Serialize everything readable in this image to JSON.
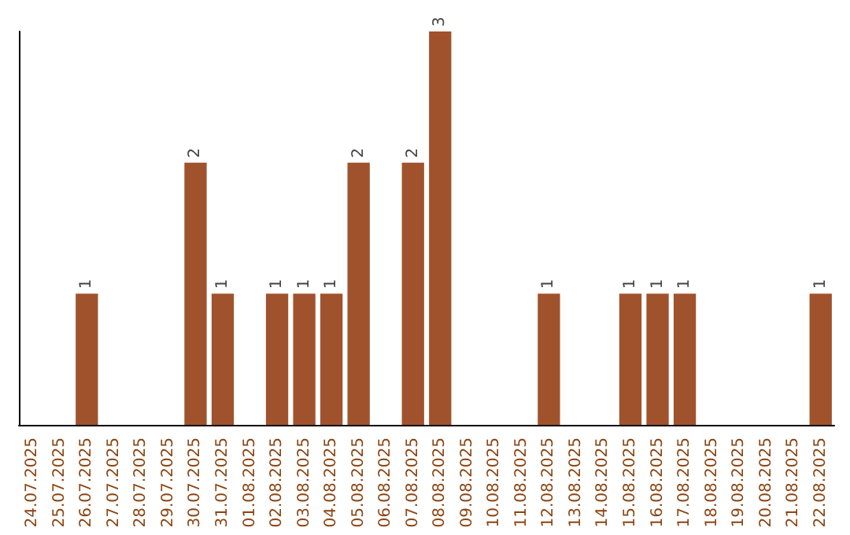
{
  "chart_data": {
    "type": "bar",
    "categories": [
      "24.07.2025",
      "25.07.2025",
      "26.07.2025",
      "27.07.2025",
      "28.07.2025",
      "29.07.2025",
      "30.07.2025",
      "31.07.2025",
      "01.08.2025",
      "02.08.2025",
      "03.08.2025",
      "04.08.2025",
      "05.08.2025",
      "06.08.2025",
      "07.08.2025",
      "08.08.2025",
      "09.08.2025",
      "10.08.2025",
      "11.08.2025",
      "12.08.2025",
      "13.08.2025",
      "14.08.2025",
      "15.08.2025",
      "16.08.2025",
      "17.08.2025",
      "18.08.2025",
      "19.08.2025",
      "20.08.2025",
      "21.08.2025",
      "22.08.2025"
    ],
    "values": [
      0,
      0,
      1,
      0,
      0,
      0,
      2,
      1,
      0,
      1,
      1,
      1,
      2,
      0,
      2,
      3,
      0,
      0,
      0,
      1,
      0,
      0,
      1,
      1,
      1,
      0,
      0,
      0,
      0,
      1
    ],
    "value_labels": [
      null,
      null,
      "1",
      null,
      null,
      null,
      "2",
      "1",
      null,
      "1",
      "1",
      "1",
      "2",
      null,
      "2",
      "3",
      null,
      null,
      null,
      "1",
      null,
      null,
      "1",
      "1",
      "1",
      null,
      null,
      null,
      null,
      "1"
    ],
    "color": "#a0522d",
    "grid": false,
    "tick_labels": "x"
  }
}
